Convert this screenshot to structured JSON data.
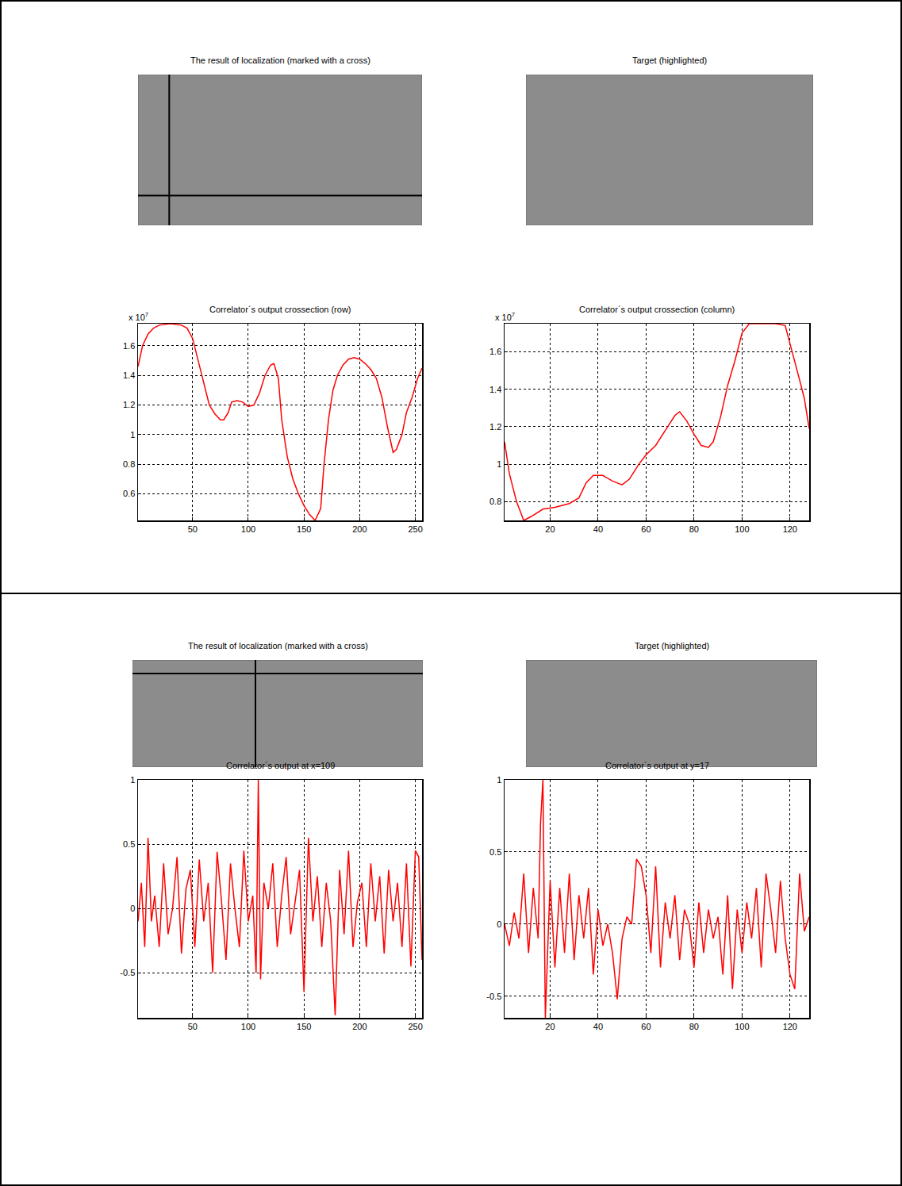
{
  "chart_data": [
    {
      "type": "image",
      "title": "The result of localization (marked with a cross)",
      "xlim": [
        1,
        256
      ],
      "ylim": [
        128,
        1
      ],
      "cross": {
        "x": 29,
        "y": 103
      },
      "tick_labels": false
    },
    {
      "type": "image",
      "title": "Target (highlighted)",
      "xlim": [
        1,
        256
      ],
      "ylim": [
        128,
        1
      ],
      "tick_labels": false
    },
    {
      "type": "line",
      "title": "Correlator´s output crossection (row)",
      "y_scale": {
        "label": "x 10",
        "exponent": 7
      },
      "x": [
        1,
        5,
        10,
        15,
        20,
        30,
        40,
        45,
        50,
        55,
        60,
        65,
        70,
        75,
        78,
        82,
        85,
        90,
        95,
        100,
        105,
        110,
        115,
        120,
        123,
        127,
        130,
        135,
        140,
        145,
        150,
        155,
        160,
        165,
        168,
        172,
        176,
        180,
        185,
        190,
        195,
        200,
        205,
        210,
        215,
        220,
        225,
        230,
        233,
        238,
        242,
        247,
        252,
        256
      ],
      "values": [
        1.46,
        1.6,
        1.68,
        1.72,
        1.74,
        1.75,
        1.74,
        1.72,
        1.65,
        1.5,
        1.35,
        1.2,
        1.14,
        1.1,
        1.1,
        1.15,
        1.22,
        1.23,
        1.22,
        1.19,
        1.2,
        1.28,
        1.4,
        1.47,
        1.48,
        1.38,
        1.1,
        0.85,
        0.7,
        0.6,
        0.52,
        0.46,
        0.42,
        0.5,
        0.8,
        1.1,
        1.3,
        1.4,
        1.47,
        1.51,
        1.52,
        1.51,
        1.48,
        1.44,
        1.38,
        1.25,
        1.05,
        0.88,
        0.9,
        1.0,
        1.15,
        1.25,
        1.38,
        1.45
      ],
      "color": "#ff0000",
      "xlim": [
        1,
        256
      ],
      "xticks": [
        50,
        100,
        150,
        200,
        250
      ],
      "ylim": [
        0.42,
        1.75
      ],
      "yticks": [
        0.6,
        0.8,
        1,
        1.2,
        1.4,
        1.6
      ],
      "grid": true
    },
    {
      "type": "line",
      "title": "Correlator´s output crossection (column)",
      "y_scale": {
        "label": "x 10",
        "exponent": 7
      },
      "x": [
        1,
        3,
        6,
        9,
        12,
        17,
        22,
        28,
        32,
        35,
        38,
        42,
        46,
        50,
        53,
        57,
        60,
        64,
        68,
        72,
        74,
        77,
        80,
        83,
        86,
        88,
        91,
        94,
        97,
        100,
        103,
        108,
        114,
        118,
        121,
        124,
        126,
        128
      ],
      "values": [
        1.12,
        0.95,
        0.8,
        0.7,
        0.72,
        0.76,
        0.77,
        0.79,
        0.82,
        0.9,
        0.94,
        0.94,
        0.91,
        0.89,
        0.92,
        1.0,
        1.05,
        1.1,
        1.18,
        1.26,
        1.28,
        1.23,
        1.16,
        1.1,
        1.09,
        1.12,
        1.25,
        1.42,
        1.55,
        1.7,
        1.75,
        1.75,
        1.75,
        1.74,
        1.6,
        1.45,
        1.35,
        1.19
      ],
      "color": "#ff0000",
      "xlim": [
        1,
        128
      ],
      "xticks": [
        20,
        40,
        60,
        80,
        100,
        120
      ],
      "ylim": [
        0.7,
        1.75
      ],
      "yticks": [
        0.8,
        1,
        1.2,
        1.4,
        1.6
      ],
      "grid": true
    },
    {
      "type": "image",
      "title": "The result of localization (marked with a cross)",
      "xlim": [
        1,
        256
      ],
      "ylim": [
        128,
        1
      ],
      "cross": {
        "x": 109,
        "y": 17
      },
      "tick_labels": false
    },
    {
      "type": "image",
      "title": "Target (highlighted)",
      "xlim": [
        1,
        256
      ],
      "ylim": [
        128,
        1
      ],
      "tick_labels": false
    },
    {
      "type": "line",
      "title": "Correlator´s output at x=109",
      "x": [
        1,
        4,
        7,
        10,
        13,
        16,
        20,
        24,
        28,
        32,
        36,
        40,
        44,
        48,
        52,
        56,
        60,
        64,
        68,
        72,
        76,
        80,
        84,
        88,
        92,
        96,
        100,
        104,
        107,
        109,
        111,
        114,
        118,
        122,
        126,
        130,
        134,
        138,
        142,
        146,
        150,
        154,
        158,
        162,
        166,
        170,
        174,
        178,
        182,
        186,
        190,
        194,
        198,
        202,
        206,
        210,
        214,
        218,
        222,
        226,
        230,
        234,
        238,
        242,
        246,
        250,
        253,
        256
      ],
      "values": [
        -0.1,
        0.2,
        -0.3,
        0.55,
        -0.1,
        0.1,
        -0.3,
        0.35,
        -0.2,
        0.0,
        0.4,
        -0.35,
        0.15,
        0.3,
        -0.3,
        0.38,
        -0.1,
        0.2,
        -0.5,
        0.44,
        0.05,
        -0.4,
        0.35,
        0.0,
        -0.3,
        0.45,
        -0.1,
        0.1,
        -0.5,
        1.0,
        -0.55,
        0.2,
        0.0,
        0.35,
        -0.3,
        0.1,
        0.4,
        -0.2,
        0.05,
        0.3,
        -0.65,
        0.55,
        -0.1,
        0.25,
        -0.3,
        0.2,
        -0.1,
        -0.83,
        0.3,
        -0.2,
        0.45,
        -0.3,
        0.05,
        0.2,
        -0.3,
        0.35,
        -0.1,
        0.25,
        -0.35,
        0.3,
        -0.1,
        0.2,
        -0.3,
        0.35,
        -0.45,
        0.45,
        0.4,
        -0.4
      ],
      "color": "#ff0000",
      "xlim": [
        1,
        256
      ],
      "xticks": [
        50,
        100,
        150,
        200,
        250
      ],
      "ylim": [
        -0.85,
        1
      ],
      "yticks": [
        -0.5,
        0,
        0.5,
        1
      ],
      "grid": true
    },
    {
      "type": "line",
      "title": "Correlator´s output at y=17",
      "x": [
        1,
        3,
        5,
        7,
        9,
        11,
        13,
        15,
        16,
        17,
        18,
        20,
        22,
        24,
        26,
        28,
        30,
        32,
        34,
        36,
        38,
        40,
        42,
        44,
        46,
        48,
        50,
        52,
        54,
        56,
        58,
        60,
        62,
        64,
        66,
        68,
        70,
        72,
        74,
        76,
        78,
        80,
        82,
        84,
        86,
        88,
        90,
        92,
        94,
        96,
        98,
        100,
        102,
        104,
        106,
        108,
        110,
        112,
        114,
        116,
        118,
        120,
        122,
        124,
        126,
        128
      ],
      "values": [
        0,
        -0.15,
        0.08,
        -0.1,
        0.35,
        -0.2,
        0.25,
        -0.1,
        0.7,
        1.0,
        -0.65,
        0.3,
        -0.3,
        0.25,
        -0.2,
        0.35,
        -0.25,
        0.2,
        -0.1,
        0.25,
        -0.35,
        0.1,
        -0.15,
        0.0,
        -0.2,
        -0.52,
        -0.1,
        0.05,
        0.0,
        0.45,
        0.4,
        0.2,
        -0.2,
        0.4,
        -0.3,
        0.15,
        -0.1,
        0.2,
        -0.25,
        0.1,
        0.0,
        -0.3,
        0.15,
        -0.2,
        0.1,
        -0.1,
        0.05,
        -0.35,
        0.2,
        -0.45,
        0.1,
        -0.2,
        0.15,
        -0.1,
        0.25,
        -0.3,
        0.35,
        0.1,
        -0.2,
        0.3,
        -0.1,
        -0.35,
        -0.45,
        0.35,
        -0.05,
        0.05
      ],
      "color": "#ff0000",
      "xlim": [
        1,
        128
      ],
      "xticks": [
        20,
        40,
        60,
        80,
        100,
        120
      ],
      "ylim": [
        -0.65,
        1
      ],
      "yticks": [
        -0.5,
        0,
        0.5,
        1
      ],
      "grid": true
    }
  ]
}
